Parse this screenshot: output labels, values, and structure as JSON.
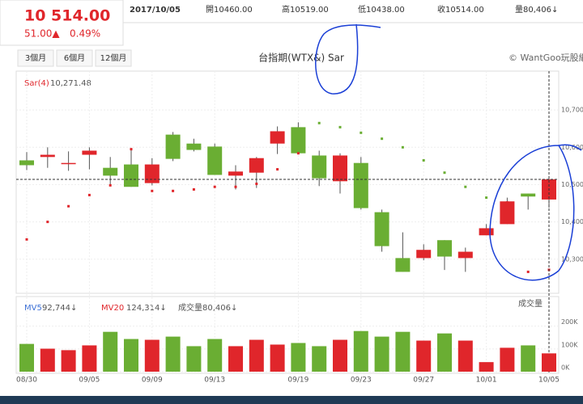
{
  "header": {
    "price": "10 514.00",
    "change": "51.00▲",
    "pct": "0.49%",
    "date": "2017/10/05",
    "open": "開10460.00",
    "high": "高10519.00",
    "low": "低10438.00",
    "close": "收10514.00",
    "volume": "量80,406↓"
  },
  "buttons": [
    "3個月",
    "6個月",
    "12個月"
  ],
  "chart_data": [
    {
      "type": "candlestick",
      "title": "台指期(WTX&) Sar",
      "credit": "© WantGoo玩股網",
      "sar_name": "Sar(4)",
      "sar_label": "10,271.48",
      "up_color": "#e0262b",
      "down_color": "#6aae33",
      "open": [
        10565,
        10574,
        10556,
        10580,
        10545,
        10554,
        10504,
        10634,
        10610,
        10602,
        10524,
        10532,
        10610,
        10654,
        10578,
        10509,
        10558,
        10426,
        10303,
        10303,
        10351,
        10303,
        10364,
        10394,
        10476,
        10460
      ],
      "high": [
        10587,
        10600,
        10589,
        10600,
        10574,
        10595,
        10571,
        10641,
        10623,
        10610,
        10552,
        10574,
        10656,
        10667,
        10591,
        10584,
        10574,
        10433,
        10372,
        10340,
        10351,
        10331,
        10394,
        10465,
        10476,
        10519
      ],
      "low": [
        10539,
        10545,
        10537,
        10541,
        10498,
        10494,
        10498,
        10563,
        10589,
        10526,
        10487,
        10491,
        10582,
        10584,
        10496,
        10476,
        10433,
        10320,
        10266,
        10297,
        10271,
        10266,
        10364,
        10394,
        10433,
        10438
      ],
      "close": [
        10552,
        10580,
        10558,
        10591,
        10524,
        10494,
        10554,
        10569,
        10593,
        10526,
        10535,
        10571,
        10643,
        10584,
        10517,
        10578,
        10437,
        10335,
        10266,
        10325,
        10307,
        10320,
        10383,
        10455,
        10468,
        10514
      ],
      "sar": [
        10353,
        10400,
        10442,
        10472,
        10498,
        10595,
        10483,
        10483,
        10487,
        10494,
        10494,
        10502,
        10541,
        10584,
        10665,
        10654,
        10639,
        10623,
        10600,
        10565,
        10532,
        10494,
        10465,
        10452,
        10266,
        10271.48
      ],
      "ylim": [
        10215,
        10800
      ],
      "yticks": [
        {
          "value": 10300,
          "label": "10,300"
        },
        {
          "value": 10400,
          "label": "10,400"
        },
        {
          "value": 10500,
          "label": "10,500"
        },
        {
          "value": 10600,
          "label": "10,600"
        },
        {
          "value": 10700,
          "label": "10,700"
        }
      ],
      "grid": true
    },
    {
      "type": "bar",
      "label": "成交量",
      "mv5_name": "MV5",
      "mv5_label": "92,744↓",
      "mv20_name": "MV20",
      "mv20_label": "124,314↓",
      "vol_name": "成交量",
      "vol_label": "80,406↓",
      "categories": [
        "08/30",
        null,
        null,
        "09/05",
        null,
        null,
        "09/09",
        null,
        null,
        "09/13",
        null,
        null,
        null,
        "09/19",
        null,
        null,
        "09/23",
        null,
        null,
        "09/27",
        null,
        null,
        "10/01",
        null,
        null,
        "10/05"
      ],
      "values": [
        122000,
        101000,
        94500,
        115500,
        175000,
        143500,
        140000,
        154000,
        112000,
        143500,
        112000,
        140000,
        119000,
        126000,
        112000,
        140000,
        178500,
        154000,
        175000,
        136500,
        168000,
        136500,
        42000,
        105000,
        115500,
        80406
      ],
      "ylim": [
        0,
        330000
      ],
      "yticks": [
        {
          "value": 0,
          "label": "0K"
        },
        {
          "value": 100000,
          "label": "100K"
        },
        {
          "value": 200000,
          "label": "200K"
        }
      ]
    }
  ]
}
